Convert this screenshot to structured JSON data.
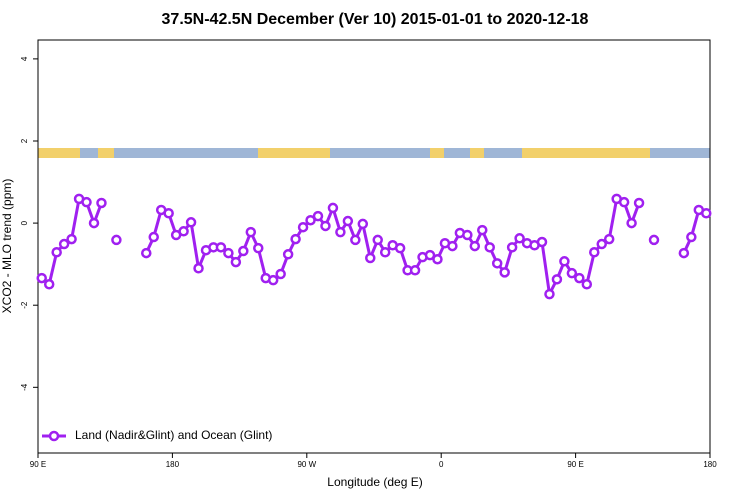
{
  "chart_data": {
    "type": "line",
    "title": "37.5N-42.5N December (Ver 10)   2015-01-01 to 2020-12-18",
    "x_label": "Longitude (deg E)",
    "y_label": "XCO2 - MLO trend (ppm)",
    "xlim": [
      90,
      540
    ],
    "xticks": [
      {
        "value": 90,
        "label": "90 E"
      },
      180,
      {
        "value": 270,
        "label": "90 W"
      },
      {
        "value": 360,
        "label": "0"
      },
      {
        "value": 450,
        "label": "90 E"
      },
      {
        "value": 540,
        "label": "180"
      }
    ],
    "ylim": [
      -5.6,
      4.46
    ],
    "yticks": [
      -4,
      -2,
      0,
      2,
      4
    ],
    "legend": "bottom-left",
    "x": [
      92.5,
      97.5,
      102.5,
      107.5,
      112.5,
      117.5,
      122.5,
      127.5,
      132.5,
      137.5,
      142.5,
      147.5,
      152.5,
      157.5,
      162.5,
      167.5,
      172.5,
      177.5,
      182.5,
      187.5,
      192.5,
      197.5,
      202.5,
      207.5,
      212.5,
      217.5,
      222.5,
      227.5,
      232.5,
      237.5,
      242.5,
      247.5,
      252.5,
      257.5,
      262.5,
      267.5,
      272.5,
      277.5,
      282.5,
      287.5,
      292.5,
      297.5,
      302.5,
      307.5,
      312.5,
      317.5,
      322.5,
      327.5,
      332.5,
      337.5,
      342.5,
      347.5,
      352.5,
      357.5,
      362.5,
      367.5,
      372.5,
      377.5,
      382.5,
      387.5,
      392.5,
      397.5,
      402.5,
      407.5,
      412.5,
      417.5,
      422.5,
      427.5,
      432.5,
      437.5,
      442.5,
      447.5,
      452.5,
      457.5,
      462.5,
      467.5,
      472.5,
      477.5,
      482.5,
      487.5,
      492.5,
      497.5,
      502.5,
      507.5,
      512.5,
      517.5,
      522.5,
      527.5,
      532.5,
      537.5
    ],
    "series": [
      {
        "name": "Land (Nadir&Glint) and Ocean (Glint)",
        "color": "#a020f0",
        "values": [
          -1.34,
          -1.49,
          -0.71,
          -0.51,
          -0.39,
          0.59,
          0.51,
          0,
          0.49,
          null,
          -0.41,
          null,
          null,
          null,
          -0.73,
          -0.34,
          0.32,
          0.24,
          -0.29,
          -0.2,
          0.02,
          -1.1,
          -0.66,
          -0.59,
          -0.59,
          -0.73,
          -0.95,
          -0.68,
          -0.22,
          -0.61,
          -1.34,
          -1.39,
          -1.24,
          -0.76,
          -0.39,
          -0.1,
          0.07,
          0.17,
          -0.07,
          0.37,
          -0.22,
          0.05,
          -0.41,
          -0.02,
          -0.85,
          -0.41,
          -0.71,
          -0.54,
          -0.61,
          -1.15,
          -1.15,
          -0.83,
          -0.78,
          -0.88,
          -0.49,
          -0.56,
          -0.24,
          -0.29,
          -0.56,
          -0.17,
          -0.59,
          -0.98,
          -1.2,
          -0.59,
          -0.37,
          -0.49,
          -0.54,
          -0.46,
          -1.73,
          -1.37,
          -0.93,
          -1.22,
          -1.34,
          -1.49,
          -0.71,
          -0.51,
          -0.39,
          0.59,
          0.51,
          0,
          0.49,
          null,
          -0.41,
          null,
          null,
          null,
          -0.73,
          -0.34,
          0.32,
          0.24
        ]
      }
    ]
  }
}
